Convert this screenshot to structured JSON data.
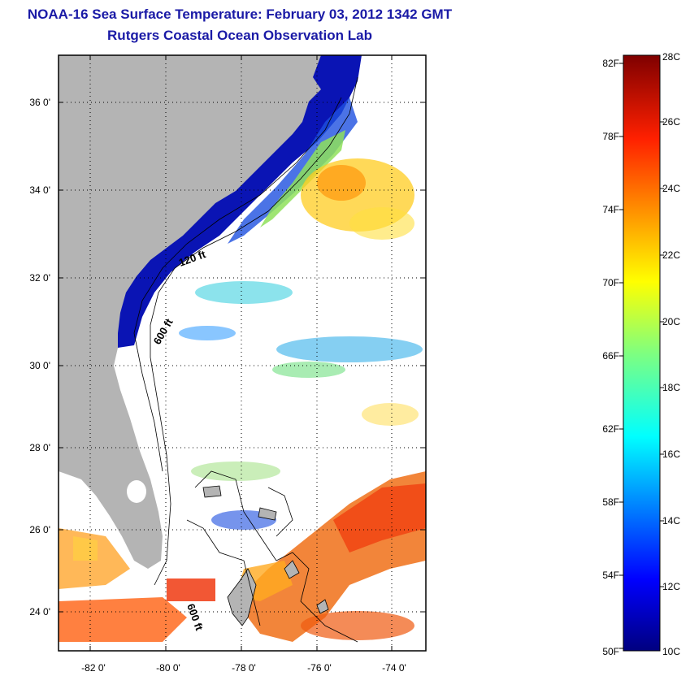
{
  "header": {
    "title": "NOAA-16 Sea Surface Temperature:  February 03, 2012 1342 GMT",
    "subtitle": "Rutgers Coastal Ocean Observation Lab"
  },
  "map": {
    "lat_labels": [
      "36 0'",
      "34 0'",
      "32 0'",
      "30 0'",
      "28 0'",
      "26 0'",
      "24 0'"
    ],
    "lon_labels": [
      "-82 0'",
      "-80 0'",
      "-78 0'",
      "-76 0'",
      "-74 0'"
    ],
    "contour_labels": [
      "120 ft",
      "600 ft",
      "600 ft"
    ],
    "colors": {
      "land": "#b4b4b4",
      "cold": "#0a14b4",
      "warm": "#f05010",
      "frame": "#000000"
    }
  },
  "colorbar": {
    "fahrenheit_labels": [
      "82F",
      "78F",
      "74F",
      "70F",
      "66F",
      "62F",
      "58F",
      "54F",
      "50F"
    ],
    "celsius_labels": [
      "28C",
      "26C",
      "24C",
      "22C",
      "20C",
      "18C",
      "16C",
      "14C",
      "12C",
      "10C"
    ]
  }
}
